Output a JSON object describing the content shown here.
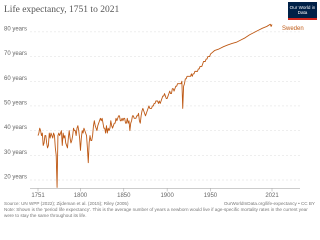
{
  "chart_data": {
    "type": "line",
    "title": "Life expectancy, 1751 to 2021",
    "logo": "Our World in Data",
    "source": "Source: UN WPP (2022); Zijdeman et al. (2015); Riley (2005)",
    "url": "OurWorldInData.org/life-expectancy • CC BY",
    "note": "Note: Shown is the 'period life expectancy'. This is the average number of years a newborn would live if age-specific mortality rates in the current year were to stay the same throughout its life.",
    "xlim": [
      1751,
      2021
    ],
    "xticks": [
      1751,
      1800,
      1850,
      1900,
      1950,
      2021
    ],
    "ylim": [
      17,
      84
    ],
    "yticks": [
      {
        "value": 20,
        "label": "20 years"
      },
      {
        "value": 30,
        "label": "30 years"
      },
      {
        "value": 40,
        "label": "40 years"
      },
      {
        "value": 50,
        "label": "50 years"
      },
      {
        "value": 60,
        "label": "60 years"
      },
      {
        "value": 70,
        "label": "70 years"
      },
      {
        "value": 80,
        "label": "80 years"
      }
    ],
    "grid": true,
    "x": [
      1751,
      1752,
      1753,
      1754,
      1755,
      1756,
      1757,
      1758,
      1759,
      1760,
      1761,
      1762,
      1763,
      1764,
      1765,
      1766,
      1767,
      1768,
      1769,
      1770,
      1771,
      1772,
      1773,
      1774,
      1775,
      1776,
      1777,
      1778,
      1779,
      1780,
      1781,
      1782,
      1783,
      1784,
      1785,
      1786,
      1787,
      1788,
      1789,
      1790,
      1791,
      1792,
      1793,
      1794,
      1795,
      1796,
      1797,
      1798,
      1799,
      1800,
      1801,
      1802,
      1803,
      1804,
      1805,
      1806,
      1807,
      1808,
      1809,
      1810,
      1811,
      1812,
      1813,
      1814,
      1815,
      1816,
      1817,
      1818,
      1819,
      1820,
      1821,
      1822,
      1823,
      1824,
      1825,
      1826,
      1827,
      1828,
      1829,
      1830,
      1831,
      1832,
      1833,
      1834,
      1835,
      1836,
      1837,
      1838,
      1839,
      1840,
      1841,
      1842,
      1843,
      1844,
      1845,
      1846,
      1847,
      1848,
      1849,
      1850,
      1851,
      1852,
      1853,
      1854,
      1855,
      1856,
      1857,
      1858,
      1859,
      1860,
      1861,
      1862,
      1863,
      1864,
      1865,
      1866,
      1867,
      1868,
      1869,
      1870,
      1871,
      1872,
      1873,
      1874,
      1875,
      1876,
      1877,
      1878,
      1879,
      1880,
      1881,
      1882,
      1883,
      1884,
      1885,
      1886,
      1887,
      1888,
      1889,
      1890,
      1891,
      1892,
      1893,
      1894,
      1895,
      1896,
      1897,
      1898,
      1899,
      1900,
      1901,
      1902,
      1903,
      1904,
      1905,
      1906,
      1907,
      1908,
      1909,
      1910,
      1911,
      1912,
      1913,
      1914,
      1915,
      1916,
      1917,
      1918,
      1919,
      1920,
      1921,
      1922,
      1923,
      1924,
      1925,
      1926,
      1927,
      1928,
      1929,
      1930,
      1931,
      1932,
      1933,
      1934,
      1935,
      1936,
      1937,
      1938,
      1939,
      1940,
      1941,
      1942,
      1943,
      1944,
      1945,
      1946,
      1947,
      1948,
      1949,
      1950,
      1955,
      1960,
      1965,
      1970,
      1975,
      1980,
      1985,
      1990,
      1995,
      2000,
      2005,
      2010,
      2015,
      2019,
      2020,
      2021
    ],
    "series": [
      {
        "name": "Sweden",
        "color": "#be5915",
        "values": [
          38,
          39,
          41,
          40,
          38,
          39,
          34,
          35,
          38,
          38,
          35,
          33,
          34,
          39,
          37,
          39,
          38,
          37,
          39,
          38,
          33,
          30,
          17,
          38,
          39,
          38,
          39,
          40,
          34,
          39,
          37,
          38,
          35,
          34,
          33,
          37,
          40,
          37,
          35,
          36,
          38,
          41,
          40,
          40,
          38,
          41,
          42,
          40,
          37,
          32,
          37,
          40,
          39,
          41,
          40,
          39,
          38,
          33,
          27,
          35,
          38,
          36,
          36,
          38,
          42,
          44,
          42,
          41,
          40,
          42,
          43,
          44,
          45,
          44,
          45,
          43,
          41,
          41,
          39,
          42,
          39,
          41,
          40,
          41,
          44,
          42,
          41,
          42,
          43,
          43,
          45,
          44,
          45,
          46,
          46,
          44,
          44,
          45,
          44,
          45,
          45,
          43,
          43,
          45,
          43,
          44,
          40,
          43,
          44,
          46,
          46,
          45,
          45,
          45,
          46,
          46,
          47,
          44,
          43,
          46,
          48,
          49,
          48,
          47,
          46,
          47,
          48,
          49,
          50,
          49,
          49,
          49,
          50,
          50,
          51,
          51,
          52,
          52,
          52,
          51,
          52,
          51,
          52,
          53,
          54,
          54,
          55,
          54,
          53,
          53,
          54,
          55,
          56,
          55,
          55,
          57,
          57,
          56,
          57,
          58,
          58,
          59,
          59,
          59,
          59,
          59,
          60,
          49,
          58,
          59,
          61,
          61,
          62,
          62,
          62,
          62,
          62,
          63,
          62,
          63,
          63,
          64,
          64,
          64,
          64,
          65,
          65,
          66,
          66,
          66,
          67,
          68,
          68,
          68,
          69,
          69,
          70,
          70,
          70,
          71,
          72.5,
          73.1,
          74,
          74.7,
          75.3,
          75.8,
          76.7,
          77.6,
          78.8,
          79.7,
          80.6,
          81.5,
          82.2,
          83.1,
          82.2,
          83
        ]
      }
    ]
  }
}
